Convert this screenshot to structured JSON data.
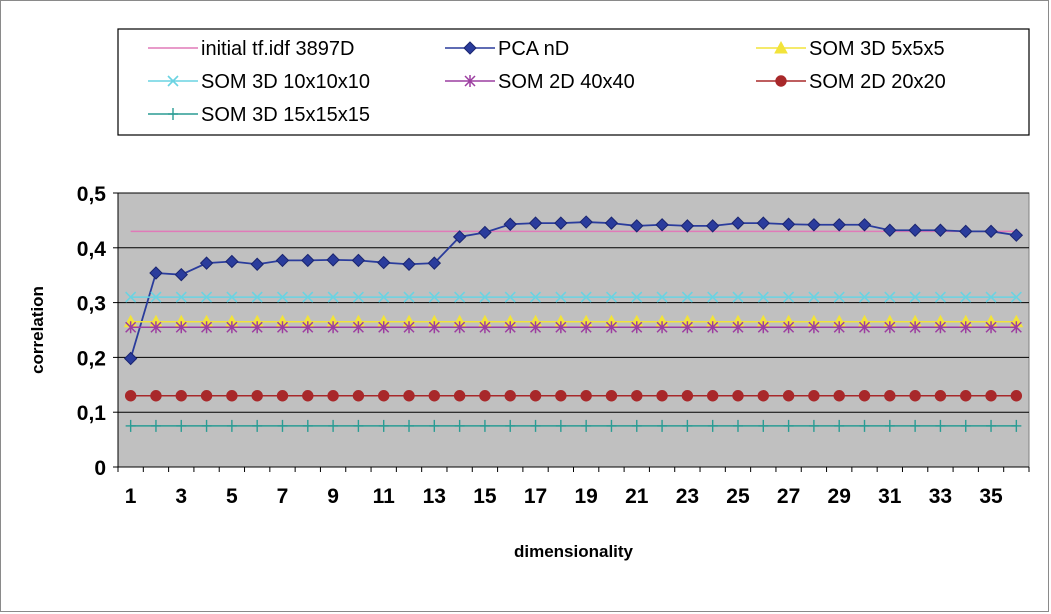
{
  "chart_data": {
    "type": "line",
    "title": "",
    "xlabel": "dimensionality",
    "ylabel": "correlation",
    "x": [
      1,
      2,
      3,
      4,
      5,
      6,
      7,
      8,
      9,
      10,
      11,
      12,
      13,
      14,
      15,
      16,
      17,
      18,
      19,
      20,
      21,
      22,
      23,
      24,
      25,
      26,
      27,
      28,
      29,
      30,
      31,
      32,
      33,
      34,
      35,
      36
    ],
    "x_tick_labels": [
      "1",
      "3",
      "5",
      "7",
      "9",
      "11",
      "13",
      "15",
      "17",
      "19",
      "21",
      "23",
      "25",
      "27",
      "29",
      "31",
      "33",
      "35"
    ],
    "y_tick_labels": [
      "0",
      "0,1",
      "0,2",
      "0,3",
      "0,4",
      "0,5"
    ],
    "ylim": [
      0,
      0.5
    ],
    "grid": true,
    "legend_position": "top",
    "background": "#c0c0c0",
    "series": [
      {
        "name": "initial tf.idf 3897D",
        "color": "#e07ab8",
        "marker": "none",
        "values": [
          0.43,
          0.43,
          0.43,
          0.43,
          0.43,
          0.43,
          0.43,
          0.43,
          0.43,
          0.43,
          0.43,
          0.43,
          0.43,
          0.43,
          0.43,
          0.43,
          0.43,
          0.43,
          0.43,
          0.43,
          0.43,
          0.43,
          0.43,
          0.43,
          0.43,
          0.43,
          0.43,
          0.43,
          0.43,
          0.43,
          0.43,
          0.43,
          0.43,
          0.43,
          0.43,
          0.43
        ]
      },
      {
        "name": "PCA nD",
        "color": "#2a3c9c",
        "marker": "diamond",
        "values": [
          0.198,
          0.354,
          0.351,
          0.372,
          0.375,
          0.37,
          0.377,
          0.377,
          0.378,
          0.377,
          0.373,
          0.37,
          0.372,
          0.42,
          0.428,
          0.443,
          0.445,
          0.445,
          0.447,
          0.445,
          0.44,
          0.442,
          0.44,
          0.44,
          0.445,
          0.445,
          0.443,
          0.442,
          0.442,
          0.442,
          0.432,
          0.432,
          0.432,
          0.43,
          0.43,
          0.423
        ]
      },
      {
        "name": "SOM 3D 5x5x5",
        "color": "#f2e33a",
        "marker": "triangle",
        "values": [
          0.265,
          0.265,
          0.265,
          0.265,
          0.265,
          0.265,
          0.265,
          0.265,
          0.265,
          0.265,
          0.265,
          0.265,
          0.265,
          0.265,
          0.265,
          0.265,
          0.265,
          0.265,
          0.265,
          0.265,
          0.265,
          0.265,
          0.265,
          0.265,
          0.265,
          0.265,
          0.265,
          0.265,
          0.265,
          0.265,
          0.265,
          0.265,
          0.265,
          0.265,
          0.265,
          0.265
        ]
      },
      {
        "name": "SOM 3D 10x10x10",
        "color": "#6ad3e2",
        "marker": "x",
        "values": [
          0.31,
          0.31,
          0.31,
          0.31,
          0.31,
          0.31,
          0.31,
          0.31,
          0.31,
          0.31,
          0.31,
          0.31,
          0.31,
          0.31,
          0.31,
          0.31,
          0.31,
          0.31,
          0.31,
          0.31,
          0.31,
          0.31,
          0.31,
          0.31,
          0.31,
          0.31,
          0.31,
          0.31,
          0.31,
          0.31,
          0.31,
          0.31,
          0.31,
          0.31,
          0.31,
          0.31
        ]
      },
      {
        "name": "SOM 2D 40x40",
        "color": "#9c3ea0",
        "marker": "asterisk",
        "values": [
          0.255,
          0.255,
          0.255,
          0.255,
          0.255,
          0.255,
          0.255,
          0.255,
          0.255,
          0.255,
          0.255,
          0.255,
          0.255,
          0.255,
          0.255,
          0.255,
          0.255,
          0.255,
          0.255,
          0.255,
          0.255,
          0.255,
          0.255,
          0.255,
          0.255,
          0.255,
          0.255,
          0.255,
          0.255,
          0.255,
          0.255,
          0.255,
          0.255,
          0.255,
          0.255,
          0.255
        ]
      },
      {
        "name": "SOM 2D 20x20",
        "color": "#a8282a",
        "marker": "circle",
        "values": [
          0.13,
          0.13,
          0.13,
          0.13,
          0.13,
          0.13,
          0.13,
          0.13,
          0.13,
          0.13,
          0.13,
          0.13,
          0.13,
          0.13,
          0.13,
          0.13,
          0.13,
          0.13,
          0.13,
          0.13,
          0.13,
          0.13,
          0.13,
          0.13,
          0.13,
          0.13,
          0.13,
          0.13,
          0.13,
          0.13,
          0.13,
          0.13,
          0.13,
          0.13,
          0.13,
          0.13
        ]
      },
      {
        "name": "SOM 3D 15x15x15",
        "color": "#2a9c94",
        "marker": "plus",
        "values": [
          0.075,
          0.075,
          0.075,
          0.075,
          0.075,
          0.075,
          0.075,
          0.075,
          0.075,
          0.075,
          0.075,
          0.075,
          0.075,
          0.075,
          0.075,
          0.075,
          0.075,
          0.075,
          0.075,
          0.075,
          0.075,
          0.075,
          0.075,
          0.075,
          0.075,
          0.075,
          0.075,
          0.075,
          0.075,
          0.075,
          0.075,
          0.075,
          0.075,
          0.075,
          0.075,
          0.075
        ]
      }
    ]
  }
}
